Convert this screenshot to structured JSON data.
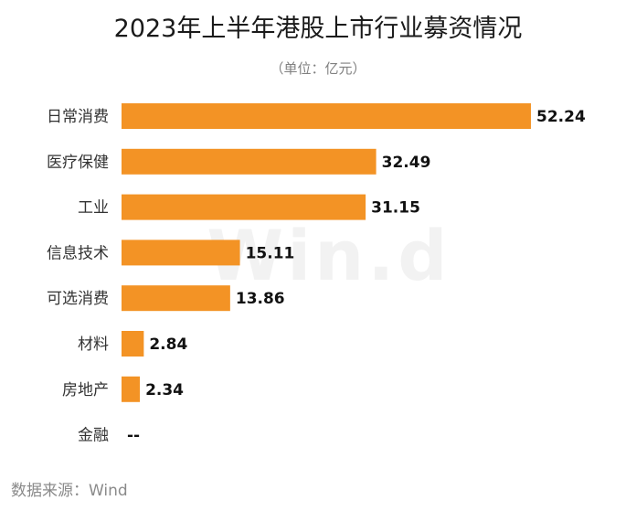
{
  "chart_data": {
    "type": "bar",
    "orientation": "horizontal",
    "title": "2023年上半年港股上市行业募资情况",
    "subtitle": "（单位：亿元）",
    "categories": [
      "日常消费",
      "医疗保健",
      "工业",
      "信息技术",
      "可选消费",
      "材料",
      "房地产",
      "金融"
    ],
    "values": [
      52.24,
      32.49,
      31.15,
      15.11,
      13.86,
      2.84,
      2.34,
      null
    ],
    "value_labels": [
      "52.24",
      "32.49",
      "31.15",
      "15.11",
      "13.86",
      "2.84",
      "2.34",
      "--"
    ],
    "xlim": [
      0,
      52.24
    ],
    "grid": false,
    "legend": "none",
    "bar_color": "#F39325",
    "watermark": "Win.d",
    "source": "数据来源：Wind"
  }
}
